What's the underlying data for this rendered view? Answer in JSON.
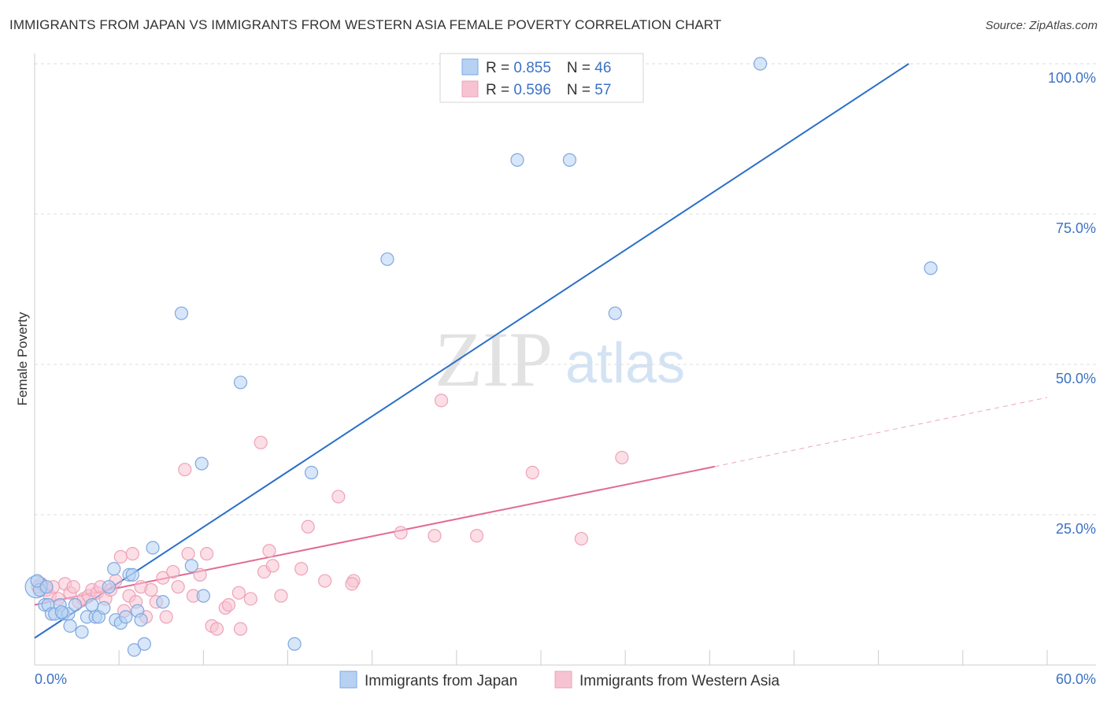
{
  "header": {
    "title": "IMMIGRANTS FROM JAPAN VS IMMIGRANTS FROM WESTERN ASIA FEMALE POVERTY CORRELATION CHART",
    "source": "Source: ZipAtlas.com"
  },
  "watermark": {
    "zip": "ZIP",
    "atlas": "atlas"
  },
  "legend": {
    "rows": [
      {
        "r_label": "R = ",
        "r_value": "0.855",
        "n_label": "N = ",
        "n_value": "46"
      },
      {
        "r_label": "R = ",
        "r_value": "0.596",
        "n_label": "N = ",
        "n_value": "57"
      }
    ]
  },
  "bottom_legend": {
    "series1": "Immigrants from Japan",
    "series2": "Immigrants from Western Asia"
  },
  "colors": {
    "blue_fill": "#b7d1f3",
    "blue_stroke": "#7ea8e0",
    "blue_line": "#2b6fc7",
    "pink_fill": "#f7c3d2",
    "pink_stroke": "#eea2b8",
    "pink_line": "#e26a94",
    "accent_text": "#3c72c4"
  },
  "chart_data": {
    "type": "scatter",
    "title": "IMMIGRANTS FROM JAPAN VS IMMIGRANTS FROM WESTERN ASIA FEMALE POVERTY CORRELATION CHART",
    "xlabel": "",
    "ylabel": "Female Poverty",
    "xlim": [
      0,
      60
    ],
    "ylim": [
      0,
      100
    ],
    "x_tick_labels": [
      "0.0%",
      "60.0%"
    ],
    "y_ticks": [
      25,
      50,
      75,
      100
    ],
    "y_tick_labels": [
      "25.0%",
      "50.0%",
      "75.0%",
      "100.0%"
    ],
    "grid": true,
    "legend_position": "top-center",
    "series": [
      {
        "name": "Immigrants from Japan",
        "R": 0.855,
        "N": 46,
        "trend": {
          "x": [
            0,
            51.8
          ],
          "y": [
            4.5,
            100
          ]
        },
        "points": [
          [
            0.1,
            13
          ],
          [
            0.3,
            12.5
          ],
          [
            0.6,
            10
          ],
          [
            0.8,
            10
          ],
          [
            1.0,
            8.5
          ],
          [
            1.2,
            8.5
          ],
          [
            1.5,
            10
          ],
          [
            1.7,
            8.5
          ],
          [
            2.0,
            8.5
          ],
          [
            2.1,
            6.5
          ],
          [
            2.4,
            10
          ],
          [
            2.8,
            5.5
          ],
          [
            3.1,
            8
          ],
          [
            3.4,
            10
          ],
          [
            3.6,
            8
          ],
          [
            3.8,
            8
          ],
          [
            4.1,
            9.5
          ],
          [
            4.4,
            13
          ],
          [
            4.7,
            16
          ],
          [
            4.8,
            7.5
          ],
          [
            5.1,
            7
          ],
          [
            5.4,
            8
          ],
          [
            5.6,
            15
          ],
          [
            5.8,
            15
          ],
          [
            5.9,
            2.5
          ],
          [
            6.1,
            9
          ],
          [
            6.3,
            7.5
          ],
          [
            6.5,
            3.5
          ],
          [
            7.0,
            19.5
          ],
          [
            7.6,
            10.5
          ],
          [
            8.7,
            58.5
          ],
          [
            9.3,
            16.5
          ],
          [
            10.0,
            11.5
          ],
          [
            9.9,
            33.5
          ],
          [
            12.2,
            47
          ],
          [
            15.4,
            3.5
          ],
          [
            16.4,
            32
          ],
          [
            20.9,
            67.5
          ],
          [
            28.6,
            84
          ],
          [
            31.7,
            84
          ],
          [
            34.4,
            58.5
          ],
          [
            43.0,
            100
          ],
          [
            53.1,
            66
          ],
          [
            0.15,
            14
          ],
          [
            0.7,
            13
          ],
          [
            1.6,
            8.8
          ]
        ]
      },
      {
        "name": "Immigrants from Western Asia",
        "R": 0.596,
        "N": 57,
        "trend": {
          "x": [
            0,
            40.3
          ],
          "y": [
            10,
            33
          ]
        },
        "trend_extended": {
          "x": [
            40.3,
            60
          ],
          "y": [
            33,
            44.5
          ]
        },
        "points": [
          [
            0.2,
            13
          ],
          [
            0.4,
            13.5
          ],
          [
            0.7,
            12.5
          ],
          [
            0.9,
            11.5
          ],
          [
            1.1,
            13
          ],
          [
            1.4,
            11
          ],
          [
            1.8,
            13.5
          ],
          [
            2.1,
            12
          ],
          [
            2.3,
            13
          ],
          [
            2.6,
            10.5
          ],
          [
            2.9,
            11
          ],
          [
            3.2,
            11.5
          ],
          [
            3.4,
            12.5
          ],
          [
            3.7,
            12
          ],
          [
            3.9,
            13
          ],
          [
            4.2,
            11
          ],
          [
            4.5,
            12.5
          ],
          [
            4.8,
            14
          ],
          [
            5.1,
            18
          ],
          [
            5.3,
            9
          ],
          [
            5.6,
            11.5
          ],
          [
            5.8,
            18.5
          ],
          [
            6.0,
            10.5
          ],
          [
            6.3,
            13
          ],
          [
            6.6,
            8
          ],
          [
            6.9,
            12.5
          ],
          [
            7.2,
            10.5
          ],
          [
            7.6,
            14.5
          ],
          [
            7.8,
            8
          ],
          [
            8.2,
            15.5
          ],
          [
            8.5,
            13
          ],
          [
            8.9,
            32.5
          ],
          [
            9.1,
            18.5
          ],
          [
            9.4,
            11.5
          ],
          [
            9.8,
            15
          ],
          [
            10.2,
            18.5
          ],
          [
            10.5,
            6.5
          ],
          [
            10.8,
            6
          ],
          [
            11.3,
            9.5
          ],
          [
            11.5,
            10
          ],
          [
            12.1,
            12
          ],
          [
            12.2,
            6
          ],
          [
            12.8,
            11
          ],
          [
            13.4,
            37
          ],
          [
            13.6,
            15.5
          ],
          [
            13.9,
            19
          ],
          [
            14.1,
            16.5
          ],
          [
            14.6,
            11.5
          ],
          [
            15.8,
            16
          ],
          [
            16.2,
            23
          ],
          [
            17.2,
            14
          ],
          [
            18.0,
            28
          ],
          [
            18.9,
            14
          ],
          [
            21.7,
            22
          ],
          [
            23.7,
            21.5
          ],
          [
            24.1,
            44
          ],
          [
            26.2,
            21.5
          ]
        ],
        "extra_points": [
          [
            29.5,
            32
          ],
          [
            32.4,
            21
          ],
          [
            34.8,
            34.5
          ],
          [
            18.8,
            13.5
          ]
        ]
      }
    ]
  }
}
